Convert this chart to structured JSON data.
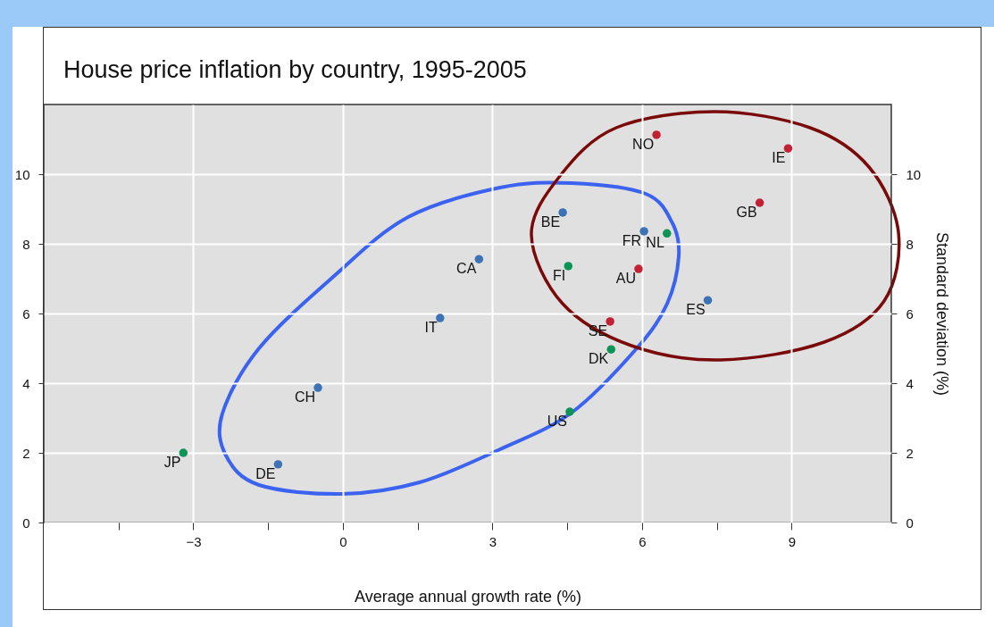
{
  "chart_data": {
    "type": "scatter",
    "title": "House price inflation by country, 1995-2005",
    "xlabel": "Average annual growth rate (%)",
    "y2label": "Standard deviation (%)",
    "xlim": [
      -6,
      11
    ],
    "xticks": [
      {
        "value": -4.5,
        "label": null
      },
      {
        "value": -3,
        "label": "−3"
      },
      {
        "value": -1.5,
        "label": null
      },
      0,
      {
        "value": 1.5,
        "label": null
      },
      3,
      {
        "value": 4.5,
        "label": null
      },
      6,
      {
        "value": 7.5,
        "label": null
      },
      9
    ],
    "ylim": [
      0,
      12
    ],
    "yticks": [
      0,
      2,
      4,
      6,
      8,
      10
    ],
    "y2lim": [
      0,
      12
    ],
    "y2ticks": [
      0,
      2,
      4,
      6,
      8,
      10
    ],
    "grid": true,
    "series": [
      {
        "color": "#c22034",
        "x": [
          6.29,
          8.93,
          8.36,
          5.93,
          5.36
        ],
        "values": [
          11.13,
          10.74,
          9.18,
          7.28,
          5.77
        ]
      },
      {
        "color": "#3d72b4",
        "x": [
          -1.3,
          -0.5,
          1.95,
          2.73,
          4.41,
          6.04,
          7.32
        ],
        "values": [
          1.67,
          3.87,
          5.87,
          7.56,
          8.9,
          8.36,
          6.38
        ]
      },
      {
        "color": "#0b9455",
        "x": [
          -3.2,
          4.52,
          4.55,
          5.38,
          6.5
        ],
        "values": [
          2.0,
          7.36,
          3.18,
          4.97,
          8.3
        ]
      }
    ],
    "annotations": [
      {
        "text": "NO",
        "x": 6.29,
        "y": 11.13
      },
      {
        "text": "IE",
        "x": 8.93,
        "y": 10.74
      },
      {
        "text": "GB",
        "x": 8.36,
        "y": 9.18
      },
      {
        "text": "AU",
        "x": 5.93,
        "y": 7.28
      },
      {
        "text": "SE",
        "x": 5.36,
        "y": 5.77
      },
      {
        "text": "DE",
        "x": -1.3,
        "y": 1.67
      },
      {
        "text": "CH",
        "x": -0.5,
        "y": 3.87
      },
      {
        "text": "IT",
        "x": 1.95,
        "y": 5.87
      },
      {
        "text": "CA",
        "x": 2.73,
        "y": 7.56
      },
      {
        "text": "BE",
        "x": 4.41,
        "y": 8.9
      },
      {
        "text": "FR",
        "x": 6.04,
        "y": 8.36
      },
      {
        "text": "ES",
        "x": 7.32,
        "y": 6.38
      },
      {
        "text": "JP",
        "x": -3.2,
        "y": 2.0
      },
      {
        "text": "FI",
        "x": 4.52,
        "y": 7.36
      },
      {
        "text": "US",
        "x": 4.55,
        "y": 3.18
      },
      {
        "text": "DK",
        "x": 5.38,
        "y": 4.97
      },
      {
        "text": "NL",
        "x": 6.5,
        "y": 8.3
      }
    ]
  }
}
